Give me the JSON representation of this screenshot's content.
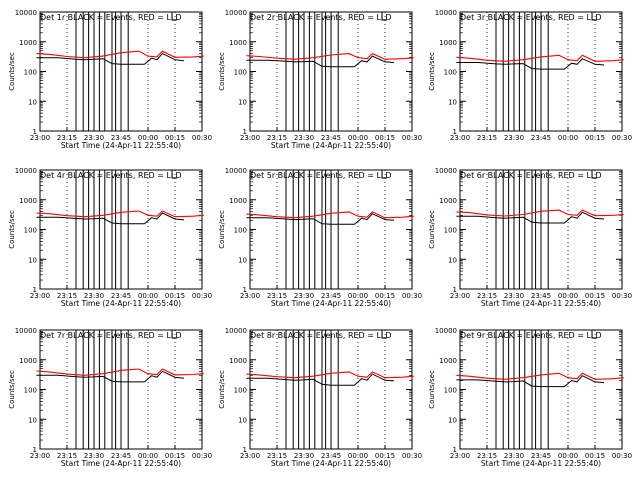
{
  "chart_data": [
    {
      "type": "line",
      "title": "Det 1r BLACK = Events, RED = LLD",
      "xlabel": "Start Time (24-Apr-11 22:55:40)",
      "ylabel": "Counts/sec",
      "yscale": "log",
      "ylim": [
        1,
        10000
      ],
      "xlim": [
        "23:00",
        "00:30"
      ],
      "xticks": [
        "23:00",
        "23:15",
        "23:30",
        "23:45",
        "00:00",
        "00:15",
        "00:30"
      ],
      "yticks": [
        "1",
        "10",
        "100",
        "1000",
        "10000"
      ],
      "grid": "vertical-dotted",
      "series": [
        {
          "name": "Events",
          "color": "#000000",
          "x": [
            "22:58",
            "23:10",
            "23:20",
            "23:25",
            "23:30",
            "23:35",
            "23:40",
            "23:45",
            "23:50",
            "23:55",
            "23:58",
            "00:02",
            "00:05",
            "00:08",
            "00:15",
            "00:20"
          ],
          "values": [
            290,
            290,
            260,
            250,
            260,
            270,
            185,
            175,
            175,
            175,
            175,
            280,
            250,
            400,
            250,
            230
          ]
        },
        {
          "name": "LLD",
          "color": "#ff0000",
          "x": [
            "22:58",
            "23:05",
            "23:15",
            "23:25",
            "23:35",
            "23:45",
            "23:55",
            "00:00",
            "00:05",
            "00:08",
            "00:15",
            "00:25",
            "00:31"
          ],
          "values": [
            400,
            380,
            320,
            290,
            330,
            430,
            480,
            330,
            310,
            480,
            300,
            310,
            330
          ]
        }
      ]
    },
    {
      "type": "line",
      "title": "Det 2r BLACK = Events, RED = LLD",
      "xlabel": "Start Time (24-Apr-11 22:55:40)",
      "ylabel": "Counts/sec",
      "yscale": "log",
      "ylim": [
        1,
        10000
      ],
      "xlim": [
        "23:00",
        "00:30"
      ],
      "xticks": [
        "23:00",
        "23:15",
        "23:30",
        "23:45",
        "00:00",
        "00:15",
        "00:30"
      ],
      "yticks": [
        "1",
        "10",
        "100",
        "1000",
        "10000"
      ],
      "grid": "vertical-dotted",
      "series": [
        {
          "name": "Events",
          "color": "#000000",
          "x": [
            "22:58",
            "23:10",
            "23:20",
            "23:25",
            "23:30",
            "23:35",
            "23:40",
            "23:45",
            "23:50",
            "23:55",
            "23:58",
            "00:02",
            "00:05",
            "00:08",
            "00:15",
            "00:20"
          ],
          "values": [
            240,
            240,
            220,
            210,
            215,
            220,
            150,
            145,
            145,
            145,
            145,
            230,
            210,
            330,
            210,
            200
          ]
        },
        {
          "name": "LLD",
          "color": "#ff0000",
          "x": [
            "22:58",
            "23:05",
            "23:15",
            "23:25",
            "23:35",
            "23:45",
            "23:55",
            "00:00",
            "00:05",
            "00:08",
            "00:15",
            "00:25",
            "00:31"
          ],
          "values": [
            340,
            320,
            280,
            260,
            290,
            360,
            400,
            290,
            270,
            400,
            260,
            270,
            290
          ]
        }
      ]
    },
    {
      "type": "line",
      "title": "Det 3r BLACK = Events, RED = LLD",
      "xlabel": "",
      "ylabel": "Counts/sec",
      "yscale": "log",
      "ylim": [
        1,
        10000
      ],
      "xlim": [
        "23:00",
        "00:30"
      ],
      "xticks": [
        "23:00",
        "23:15",
        "23:30",
        "23:45",
        "00:00",
        "00:15",
        "00:30"
      ],
      "yticks": [
        "1",
        "10",
        "100",
        "1000",
        "10000"
      ],
      "grid": "vertical-dotted",
      "series": [
        {
          "name": "Events",
          "color": "#000000",
          "x": [
            "22:58",
            "23:10",
            "23:20",
            "23:25",
            "23:30",
            "23:35",
            "23:40",
            "23:45",
            "23:50",
            "23:55",
            "23:58",
            "00:02",
            "00:05",
            "00:08",
            "00:15",
            "00:20"
          ],
          "values": [
            200,
            200,
            180,
            175,
            180,
            185,
            125,
            120,
            120,
            120,
            120,
            190,
            175,
            270,
            175,
            165
          ]
        },
        {
          "name": "LLD",
          "color": "#ff0000",
          "x": [
            "22:58",
            "23:05",
            "23:15",
            "23:25",
            "23:35",
            "23:45",
            "23:55",
            "00:00",
            "00:05",
            "00:08",
            "00:15",
            "00:25",
            "00:31"
          ],
          "values": [
            300,
            280,
            240,
            220,
            250,
            310,
            350,
            250,
            230,
            350,
            220,
            230,
            250
          ]
        }
      ]
    },
    {
      "type": "line",
      "title": "Det 4r BLACK = Events, RED = LLD",
      "xlabel": "Start Time (24-Apr-11 22:55:40)",
      "ylabel": "Counts/sec",
      "yscale": "log",
      "ylim": [
        1,
        10000
      ],
      "xlim": [
        "23:00",
        "00:30"
      ],
      "xticks": [
        "23:00",
        "23:15",
        "23:30",
        "23:45",
        "00:00",
        "00:15",
        "00:30"
      ],
      "yticks": [
        "1",
        "10",
        "100",
        "1000",
        "10000"
      ],
      "grid": "vertical-dotted",
      "series": [
        {
          "name": "Events",
          "color": "#000000",
          "x": [
            "22:58",
            "23:10",
            "23:20",
            "23:25",
            "23:30",
            "23:35",
            "23:40",
            "23:45",
            "23:50",
            "23:55",
            "23:58",
            "00:02",
            "00:05",
            "00:08",
            "00:15",
            "00:20"
          ],
          "values": [
            260,
            260,
            235,
            225,
            230,
            240,
            165,
            155,
            155,
            155,
            155,
            250,
            225,
            360,
            225,
            210
          ]
        },
        {
          "name": "LLD",
          "color": "#ff0000",
          "x": [
            "22:58",
            "23:05",
            "23:15",
            "23:25",
            "23:35",
            "23:45",
            "23:55",
            "00:00",
            "00:05",
            "00:08",
            "00:15",
            "00:25",
            "00:31"
          ],
          "values": [
            360,
            340,
            290,
            270,
            300,
            380,
            420,
            300,
            280,
            420,
            270,
            280,
            300
          ]
        }
      ]
    },
    {
      "type": "line",
      "title": "Det 5r BLACK = Events, RED = LLD",
      "xlabel": "Start Time (24-Apr-11 22:55:40)",
      "ylabel": "Counts/sec",
      "yscale": "log",
      "ylim": [
        1,
        10000
      ],
      "xlim": [
        "23:00",
        "00:30"
      ],
      "xticks": [
        "23:00",
        "23:15",
        "23:30",
        "23:45",
        "00:00",
        "00:15",
        "00:30"
      ],
      "yticks": [
        "1",
        "10",
        "100",
        "1000",
        "10000"
      ],
      "grid": "vertical-dotted",
      "series": [
        {
          "name": "Events",
          "color": "#000000",
          "x": [
            "22:58",
            "23:10",
            "23:20",
            "23:25",
            "23:30",
            "23:35",
            "23:40",
            "23:45",
            "23:50",
            "23:55",
            "23:58",
            "00:02",
            "00:05",
            "00:08",
            "00:15",
            "00:20"
          ],
          "values": [
            250,
            250,
            225,
            215,
            220,
            230,
            155,
            150,
            150,
            150,
            150,
            240,
            215,
            340,
            215,
            205
          ]
        },
        {
          "name": "LLD",
          "color": "#ff0000",
          "x": [
            "22:58",
            "23:05",
            "23:15",
            "23:25",
            "23:35",
            "23:45",
            "23:55",
            "00:00",
            "00:05",
            "00:08",
            "00:15",
            "00:25",
            "00:31"
          ],
          "values": [
            330,
            310,
            270,
            250,
            280,
            350,
            390,
            280,
            260,
            390,
            250,
            260,
            280
          ]
        }
      ]
    },
    {
      "type": "line",
      "title": "Det 6r BLACK = Events, RED = LLD",
      "xlabel": "Start Time (24-Apr-11 22:55:40)",
      "ylabel": "Counts/sec",
      "yscale": "log",
      "ylim": [
        1,
        10000
      ],
      "xlim": [
        "23:00",
        "00:30"
      ],
      "xticks": [
        "23:00",
        "23:15",
        "23:30",
        "23:45",
        "00:00",
        "00:15",
        "00:30"
      ],
      "yticks": [
        "1",
        "10",
        "100",
        "1000",
        "10000"
      ],
      "grid": "vertical-dotted",
      "series": [
        {
          "name": "Events",
          "color": "#000000",
          "x": [
            "22:58",
            "23:10",
            "23:20",
            "23:25",
            "23:30",
            "23:35",
            "23:40",
            "23:45",
            "23:50",
            "23:55",
            "23:58",
            "00:02",
            "00:05",
            "00:08",
            "00:15",
            "00:20"
          ],
          "values": [
            280,
            280,
            250,
            240,
            250,
            260,
            175,
            165,
            165,
            165,
            165,
            270,
            240,
            380,
            240,
            225
          ]
        },
        {
          "name": "LLD",
          "color": "#ff0000",
          "x": [
            "22:58",
            "23:05",
            "23:15",
            "23:25",
            "23:35",
            "23:45",
            "23:55",
            "00:00",
            "00:05",
            "00:08",
            "00:15",
            "00:25",
            "00:31"
          ],
          "values": [
            390,
            370,
            310,
            285,
            320,
            410,
            450,
            320,
            300,
            450,
            290,
            300,
            320
          ]
        }
      ]
    },
    {
      "type": "line",
      "title": "Det 7r BLACK = Events, RED = LLD",
      "xlabel": "Start Time (24-Apr-11 22:55:40)",
      "ylabel": "Counts/sec",
      "yscale": "log",
      "ylim": [
        1,
        10000
      ],
      "xlim": [
        "23:00",
        "00:30"
      ],
      "xticks": [
        "23:00",
        "23:15",
        "23:30",
        "23:45",
        "00:00",
        "00:15",
        "00:30"
      ],
      "yticks": [
        "1",
        "10",
        "100",
        "1000",
        "10000"
      ],
      "grid": "vertical-dotted",
      "series": [
        {
          "name": "Events",
          "color": "#000000",
          "x": [
            "22:58",
            "23:10",
            "23:20",
            "23:25",
            "23:30",
            "23:35",
            "23:40",
            "23:45",
            "23:50",
            "23:55",
            "23:58",
            "00:02",
            "00:05",
            "00:08",
            "00:15",
            "00:20"
          ],
          "values": [
            300,
            300,
            270,
            260,
            265,
            275,
            190,
            180,
            180,
            180,
            180,
            290,
            260,
            410,
            260,
            240
          ]
        },
        {
          "name": "LLD",
          "color": "#ff0000",
          "x": [
            "22:58",
            "23:05",
            "23:15",
            "23:25",
            "23:35",
            "23:45",
            "23:55",
            "00:00",
            "00:05",
            "00:08",
            "00:15",
            "00:25",
            "00:31"
          ],
          "values": [
            420,
            390,
            330,
            300,
            340,
            440,
            490,
            340,
            320,
            490,
            310,
            320,
            340
          ]
        }
      ]
    },
    {
      "type": "line",
      "title": "Det 8r BLACK = Events, RED = LLD",
      "xlabel": "Start Time (24-Apr-11 22:55:40)",
      "ylabel": "Counts/sec",
      "yscale": "log",
      "ylim": [
        1,
        10000
      ],
      "xlim": [
        "23:00",
        "00:30"
      ],
      "xticks": [
        "23:00",
        "23:15",
        "23:30",
        "23:45",
        "00:00",
        "00:15",
        "00:30"
      ],
      "yticks": [
        "1",
        "10",
        "100",
        "1000",
        "10000"
      ],
      "grid": "vertical-dotted",
      "series": [
        {
          "name": "Events",
          "color": "#000000",
          "x": [
            "22:58",
            "23:10",
            "23:20",
            "23:25",
            "23:30",
            "23:35",
            "23:40",
            "23:45",
            "23:50",
            "23:55",
            "23:58",
            "00:02",
            "00:05",
            "00:08",
            "00:15",
            "00:20"
          ],
          "values": [
            240,
            240,
            215,
            205,
            210,
            220,
            150,
            140,
            140,
            140,
            140,
            230,
            205,
            330,
            205,
            195
          ]
        },
        {
          "name": "LLD",
          "color": "#ff0000",
          "x": [
            "22:58",
            "23:05",
            "23:15",
            "23:25",
            "23:35",
            "23:45",
            "23:55",
            "00:00",
            "00:05",
            "00:08",
            "00:15",
            "00:25",
            "00:31"
          ],
          "values": [
            330,
            310,
            270,
            250,
            280,
            350,
            390,
            280,
            260,
            390,
            250,
            260,
            280
          ]
        }
      ]
    },
    {
      "type": "line",
      "title": "Det 9r BLACK = Events, RED = LLD",
      "xlabel": "Start Time (24-Apr-11 22:55:40)",
      "ylabel": "Counts/sec",
      "yscale": "log",
      "ylim": [
        1,
        10000
      ],
      "xlim": [
        "23:00",
        "00:30"
      ],
      "xticks": [
        "23:00",
        "23:15",
        "23:30",
        "23:45",
        "00:00",
        "00:15",
        "00:30"
      ],
      "yticks": [
        "1",
        "10",
        "100",
        "1000",
        "10000"
      ],
      "grid": "vertical-dotted",
      "series": [
        {
          "name": "Events",
          "color": "#000000",
          "x": [
            "22:58",
            "23:10",
            "23:20",
            "23:25",
            "23:30",
            "23:35",
            "23:40",
            "23:45",
            "23:50",
            "23:55",
            "23:58",
            "00:02",
            "00:05",
            "00:08",
            "00:15",
            "00:20"
          ],
          "values": [
            210,
            210,
            190,
            180,
            185,
            195,
            130,
            125,
            125,
            125,
            125,
            200,
            180,
            290,
            180,
            170
          ]
        },
        {
          "name": "LLD",
          "color": "#ff0000",
          "x": [
            "22:58",
            "23:05",
            "23:15",
            "23:25",
            "23:35",
            "23:45",
            "23:55",
            "00:00",
            "00:05",
            "00:08",
            "00:15",
            "00:25",
            "00:31"
          ],
          "values": [
            300,
            280,
            240,
            220,
            250,
            310,
            350,
            250,
            230,
            350,
            220,
            230,
            250
          ]
        }
      ]
    }
  ]
}
